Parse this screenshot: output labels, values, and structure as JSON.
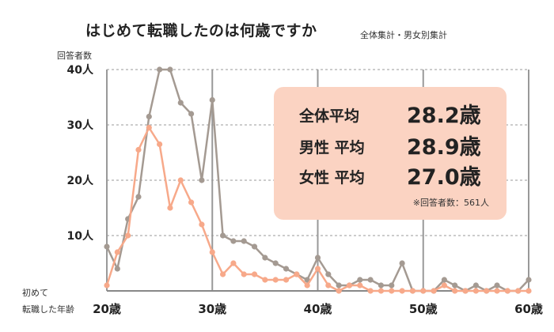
{
  "title": "はじめて転職したのは何歳ですか",
  "subtitle": "全体集計・男女別集計",
  "summary": {
    "rows": [
      {
        "label": "全体平均",
        "value": "28.2歳"
      },
      {
        "label": "男性 平均",
        "value": "28.9歳"
      },
      {
        "label": "女性 平均",
        "value": "27.0歳"
      }
    ],
    "respondents": "※回答者数：561人"
  },
  "colors": {
    "overall": "#a49a92",
    "female": "#f7a98a",
    "grid": "#999999",
    "box": "#fbd3c2"
  },
  "chart_data": {
    "type": "line",
    "ylabel": "回答者数",
    "xlabel": "初めて\n転職した年齢",
    "ylim": [
      0,
      40
    ],
    "xlim": [
      20,
      60
    ],
    "yticks": [
      {
        "v": 10,
        "label": "10人"
      },
      {
        "v": 20,
        "label": "20人"
      },
      {
        "v": 30,
        "label": "30人"
      },
      {
        "v": 40,
        "label": "40人"
      }
    ],
    "xticks": [
      {
        "v": 20,
        "label": "20歳"
      },
      {
        "v": 30,
        "label": "30歳"
      },
      {
        "v": 40,
        "label": "40歳"
      },
      {
        "v": 50,
        "label": "50歳"
      },
      {
        "v": 60,
        "label": "60歳"
      }
    ],
    "x": [
      20,
      21,
      22,
      23,
      24,
      25,
      26,
      27,
      28,
      29,
      30,
      31,
      32,
      33,
      34,
      35,
      36,
      37,
      38,
      39,
      40,
      41,
      42,
      43,
      44,
      45,
      46,
      47,
      48,
      49,
      50,
      51,
      52,
      53,
      54,
      55,
      56,
      57,
      58,
      59,
      60
    ],
    "series": [
      {
        "key": "overall",
        "values": [
          8,
          4,
          13,
          17,
          31.5,
          40,
          40,
          34,
          32,
          20,
          34.5,
          10,
          9,
          9,
          8,
          6,
          5,
          4,
          3,
          2,
          6,
          3,
          1,
          1,
          2,
          2,
          1,
          1,
          5,
          0,
          0,
          0,
          2,
          1,
          0,
          1,
          0,
          1,
          0,
          0,
          2
        ]
      },
      {
        "key": "female",
        "values": [
          1,
          7,
          10,
          25.5,
          29.5,
          26.5,
          15,
          20,
          16,
          12,
          7,
          3,
          5,
          3,
          3,
          2,
          2,
          2,
          3,
          1,
          4,
          1,
          0,
          1,
          1,
          0,
          0,
          0,
          0,
          0,
          0,
          0,
          1,
          0,
          0,
          0,
          0,
          0,
          0,
          0,
          0
        ]
      }
    ]
  }
}
